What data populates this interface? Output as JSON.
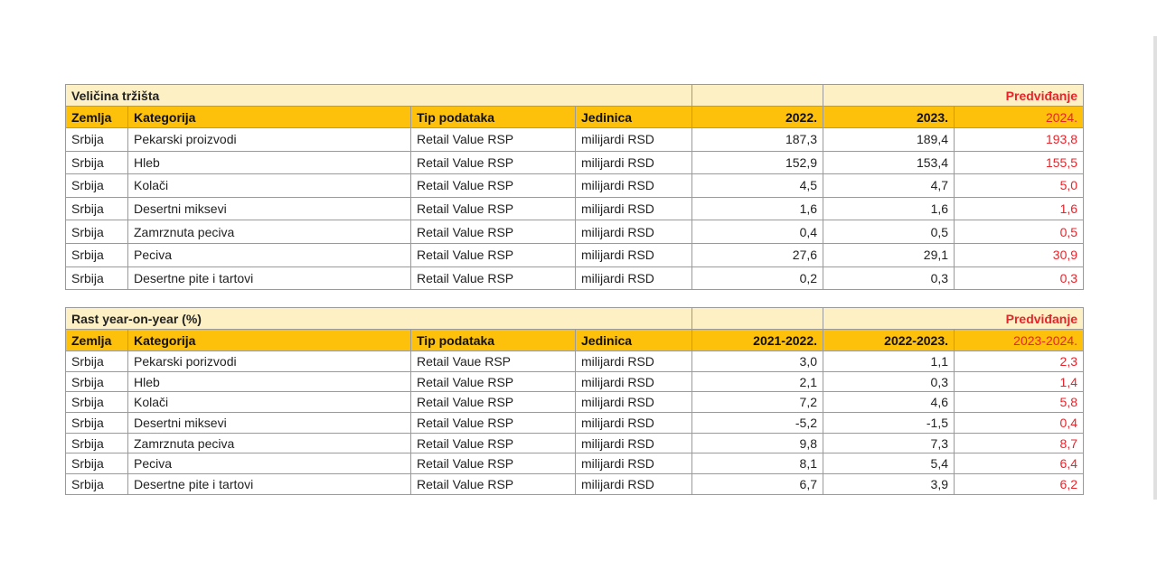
{
  "table1": {
    "title": "Veličina tržišta",
    "forecast_label": "Predviđanje",
    "headers": [
      "Zemlja",
      "Kategorija",
      "Tip podataka",
      "Jedinica",
      "2022.",
      "2023.",
      "2024."
    ],
    "rows": [
      [
        "Srbija",
        "Pekarski proizvodi",
        "Retail Value RSP",
        "milijardi RSD",
        "187,3",
        "189,4",
        "193,8"
      ],
      [
        "Srbija",
        "Hleb",
        "Retail Value RSP",
        "milijardi RSD",
        "152,9",
        "153,4",
        "155,5"
      ],
      [
        "Srbija",
        "Kolači",
        "Retail Value RSP",
        "milijardi RSD",
        "4,5",
        "4,7",
        "5,0"
      ],
      [
        "Srbija",
        "Desertni miksevi",
        "Retail Value RSP",
        "milijardi RSD",
        "1,6",
        "1,6",
        "1,6"
      ],
      [
        "Srbija",
        "Zamrznuta peciva",
        "Retail Value RSP",
        "milijardi RSD",
        "0,4",
        "0,5",
        "0,5"
      ],
      [
        "Srbija",
        "Peciva",
        "Retail Value RSP",
        "milijardi RSD",
        "27,6",
        "29,1",
        "30,9"
      ],
      [
        "Srbija",
        "Desertne pite i tartovi",
        "Retail Value RSP",
        "milijardi RSD",
        "0,2",
        "0,3",
        "0,3"
      ]
    ]
  },
  "table2": {
    "title": "Rast year-on-year (%)",
    "forecast_label": "Predviđanje",
    "headers": [
      "Zemlja",
      "Kategorija",
      "Tip podataka",
      "Jedinica",
      "2021-2022.",
      "2022-2023.",
      "2023-2024."
    ],
    "rows": [
      [
        "Srbija",
        "Pekarski porizvodi",
        "Retail Vaue RSP",
        "milijardi RSD",
        "3,0",
        "1,1",
        "2,3"
      ],
      [
        "Srbija",
        "Hleb",
        "Retail Value RSP",
        "milijardi RSD",
        "2,1",
        "0,3",
        "1,4"
      ],
      [
        "Srbija",
        "Kolači",
        "Retail Value RSP",
        "milijardi RSD",
        "7,2",
        "4,6",
        "5,8"
      ],
      [
        "Srbija",
        "Desertni miksevi",
        "Retail Value RSP",
        "milijardi RSD",
        "-5,2",
        "-1,5",
        "0,4"
      ],
      [
        "Srbija",
        "Zamrznuta peciva",
        "Retail Value RSP",
        "milijardi RSD",
        "9,8",
        "7,3",
        "8,7"
      ],
      [
        "Srbija",
        "Peciva",
        "Retail Value RSP",
        "milijardi RSD",
        "8,1",
        "5,4",
        "6,4"
      ],
      [
        "Srbija",
        "Desertne pite i tartovi",
        "Retail Value RSP",
        "milijardi RSD",
        "6,7",
        "3,9",
        "6,2"
      ]
    ]
  }
}
